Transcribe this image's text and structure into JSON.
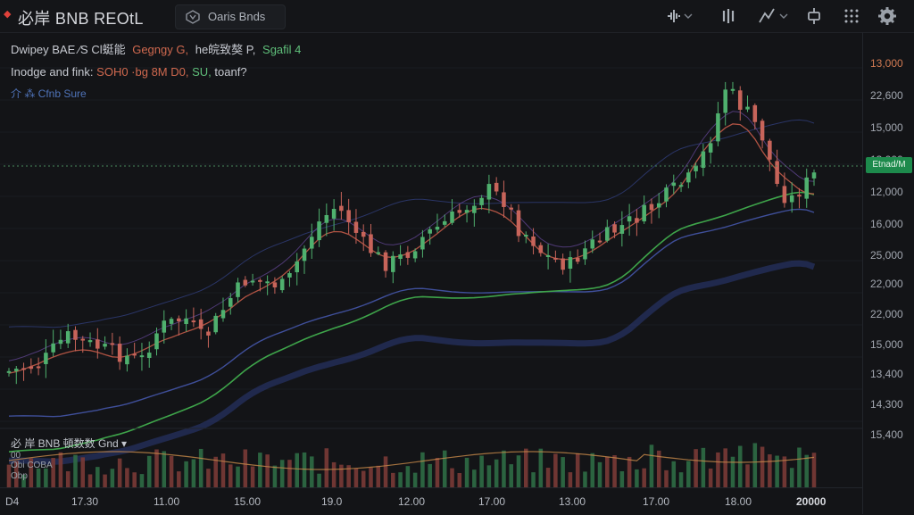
{
  "app": {
    "title": "必岸 BNB REOtL"
  },
  "tab": {
    "label": "Oaris Bnds"
  },
  "legend": {
    "line1": {
      "prefix": "Dwipey BAE  ⁄S Cl蜓能",
      "a": "Gegngy G,",
      "b": "he皖致獒 P,",
      "c": "Sgafil 4"
    },
    "line2": {
      "prefix": "Inodge and fink:",
      "value": "SOH0 ·bg 8M D0,",
      "c": "SU,",
      "d": "toanf?"
    },
    "line3": {
      "label": "介 ⁂ Cfnb Sure"
    }
  },
  "price_axis": [
    "13,000",
    "22,600",
    "15,000",
    "13,000",
    "12,000",
    "16,000",
    "25,000",
    "22,000",
    "22,000",
    "15,000",
    "13,400",
    "14,300",
    "15,400"
  ],
  "price_tag": "Etnad/M",
  "time_axis": [
    "D4",
    "17.30",
    "11.00",
    "15.00",
    "19.0",
    "12.00",
    "17.00",
    "13.00",
    "17.00",
    "18.00",
    "20000"
  ],
  "volume": {
    "label": "必 岸  BNB 頓数数  Gnd ▾",
    "sub1": "00",
    "sub2": "Obi  COBA",
    "sub3": "Obp"
  },
  "colors": {
    "up": "#4fb06e",
    "down": "#c7645a",
    "ma_green": "#3ea44a",
    "ma_red": "#c25a48",
    "ma_blue": "#3f4f9a",
    "accent": "#e0413a"
  },
  "icons": {
    "tab": "compare-icon",
    "toolbar": [
      "audio-wave-icon",
      "bars-icon",
      "draw-tool-icon",
      "crosshair-icon",
      "grid-icon",
      "gear-icon"
    ]
  }
}
